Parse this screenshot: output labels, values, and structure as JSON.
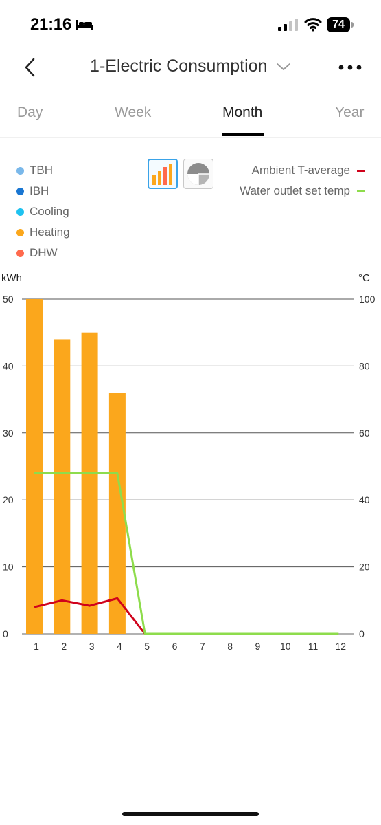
{
  "status_bar": {
    "time": "21:16",
    "battery": "74",
    "icons": [
      "bed-icon",
      "signal-icon",
      "wifi-icon",
      "battery-icon"
    ]
  },
  "nav": {
    "title": "1-Electric Consumption",
    "icons": [
      "back-icon",
      "chevron-down-icon",
      "more-icon"
    ]
  },
  "tabs": [
    {
      "label": "Day",
      "active": false
    },
    {
      "label": "Week",
      "active": false
    },
    {
      "label": "Month",
      "active": true
    },
    {
      "label": "Year",
      "active": false
    }
  ],
  "legend": {
    "left": [
      {
        "label": "TBH",
        "color": "#7ab8ea"
      },
      {
        "label": "IBH",
        "color": "#1976d2"
      },
      {
        "label": "Cooling",
        "color": "#1ec2f0"
      },
      {
        "label": "Heating",
        "color": "#fba71c"
      },
      {
        "label": "DHW",
        "color": "#ff6a4d"
      }
    ],
    "right": [
      {
        "label": "Ambient T-average",
        "color": "#d0021b"
      },
      {
        "label": "Water outlet set temp",
        "color": "#8edc4c"
      }
    ]
  },
  "chart_type_toggle": {
    "selected": "bar",
    "options": [
      "bar",
      "pie"
    ]
  },
  "chart_data": {
    "type": "bar",
    "units": {
      "left": "kWh",
      "right": "°C"
    },
    "categories": [
      "1",
      "2",
      "3",
      "4",
      "5",
      "6",
      "7",
      "8",
      "9",
      "10",
      "11",
      "12"
    ],
    "ylim_left": [
      0,
      50
    ],
    "yticks_left": [
      "0",
      "10",
      "20",
      "30",
      "40",
      "50"
    ],
    "ylim_right": [
      0,
      100
    ],
    "yticks_right": [
      "0",
      "20",
      "40",
      "60",
      "80",
      "100"
    ],
    "grid": true,
    "series": [
      {
        "name": "Heating",
        "type": "bar",
        "axis": "left",
        "color": "#fba71c",
        "values": [
          50,
          44,
          45,
          36,
          0,
          0,
          0,
          0,
          0,
          0,
          0,
          0
        ]
      },
      {
        "name": "Ambient T-average",
        "type": "line",
        "axis": "right",
        "color": "#d0021b",
        "values": [
          8,
          10,
          8.4,
          10.6,
          0,
          null,
          null,
          null,
          null,
          null,
          null,
          null
        ]
      },
      {
        "name": "Water outlet set temp",
        "type": "line",
        "axis": "right",
        "color": "#8edc4c",
        "values": [
          48,
          48,
          48,
          48,
          0,
          0,
          0,
          0,
          0,
          0,
          0,
          0
        ]
      }
    ]
  }
}
